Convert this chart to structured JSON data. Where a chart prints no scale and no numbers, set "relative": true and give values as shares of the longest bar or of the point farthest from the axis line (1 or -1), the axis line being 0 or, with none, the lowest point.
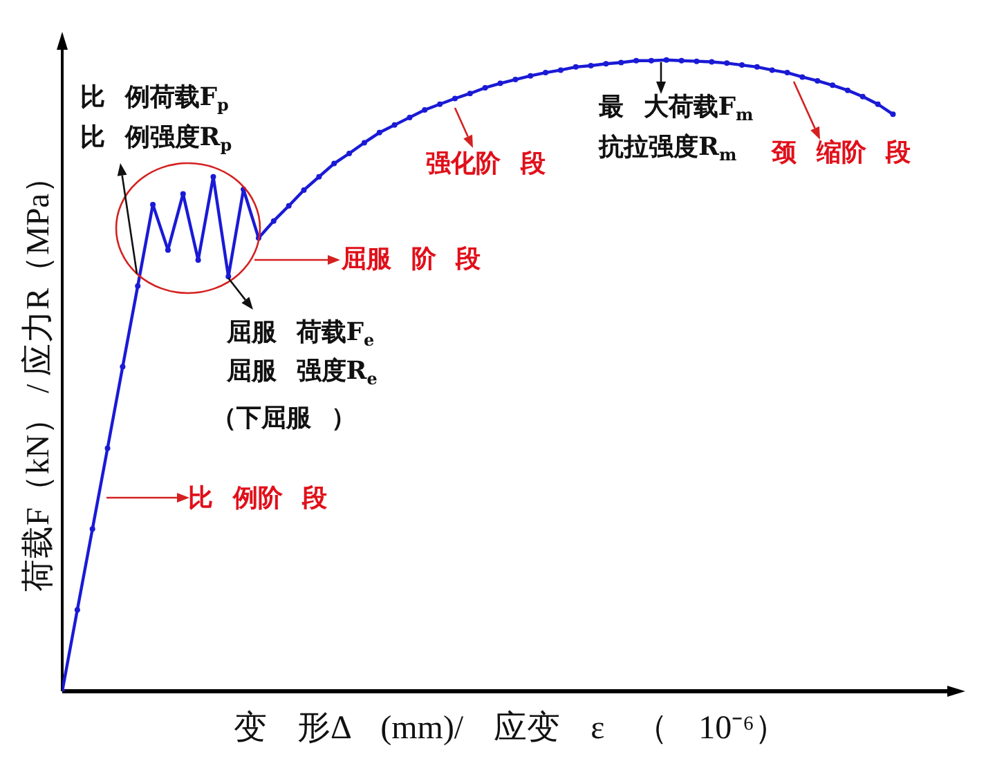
{
  "chart_data": {
    "type": "line",
    "xlabel": "变 形Δ (mm)/ 应变 ε （ 10⁻⁶）",
    "ylabel": "荷载F（kN） / 应力R（MPa）",
    "categories": [
      null,
      null,
      null,
      null,
      null,
      null,
      null,
      null,
      null,
      null,
      null,
      null,
      null,
      null,
      null,
      null,
      null,
      null,
      null,
      null,
      null,
      null,
      null,
      null,
      null,
      null,
      null,
      null,
      null,
      null,
      null,
      null,
      null,
      null,
      null,
      null,
      null,
      null,
      null,
      null,
      null,
      null,
      null,
      null,
      null,
      null,
      null,
      null,
      null,
      null,
      null,
      null,
      null,
      null,
      null,
      null
    ],
    "values": [
      0,
      0.129,
      0.257,
      0.385,
      0.514,
      0.642,
      0.771,
      0.699,
      0.788,
      0.683,
      0.815,
      0.657,
      0.795,
      0.718,
      0.745,
      0.769,
      0.794,
      0.815,
      0.836,
      0.852,
      0.869,
      0.885,
      0.897,
      0.909,
      0.921,
      0.93,
      0.939,
      0.947,
      0.956,
      0.963,
      0.969,
      0.975,
      0.98,
      0.984,
      0.989,
      0.991,
      0.994,
      0.996,
      0.999,
      0.999,
      1,
      0.999,
      0.998,
      0.997,
      0.995,
      0.992,
      0.989,
      0.984,
      0.98,
      0.973,
      0.967,
      0.96,
      0.952,
      0.942,
      0.93,
      0.914
    ],
    "color": "#1a1ad6",
    "relative": true,
    "marker": "circle",
    "line_style": "solid",
    "tick_labels": false,
    "annotations": [
      "比 例荷载F$_{p}$",
      "比 例强度R$_{p}$",
      "屈服 荷载F$_{e}$",
      "屈服 强度R$_{e}$",
      "（下屈服 ）",
      "最 大荷载F$_{m}$",
      "抗拉强度R$_{m}$",
      "强化阶 段",
      "颈 缩阶 段",
      "屈服 阶 段",
      "比 例阶 段"
    ]
  }
}
